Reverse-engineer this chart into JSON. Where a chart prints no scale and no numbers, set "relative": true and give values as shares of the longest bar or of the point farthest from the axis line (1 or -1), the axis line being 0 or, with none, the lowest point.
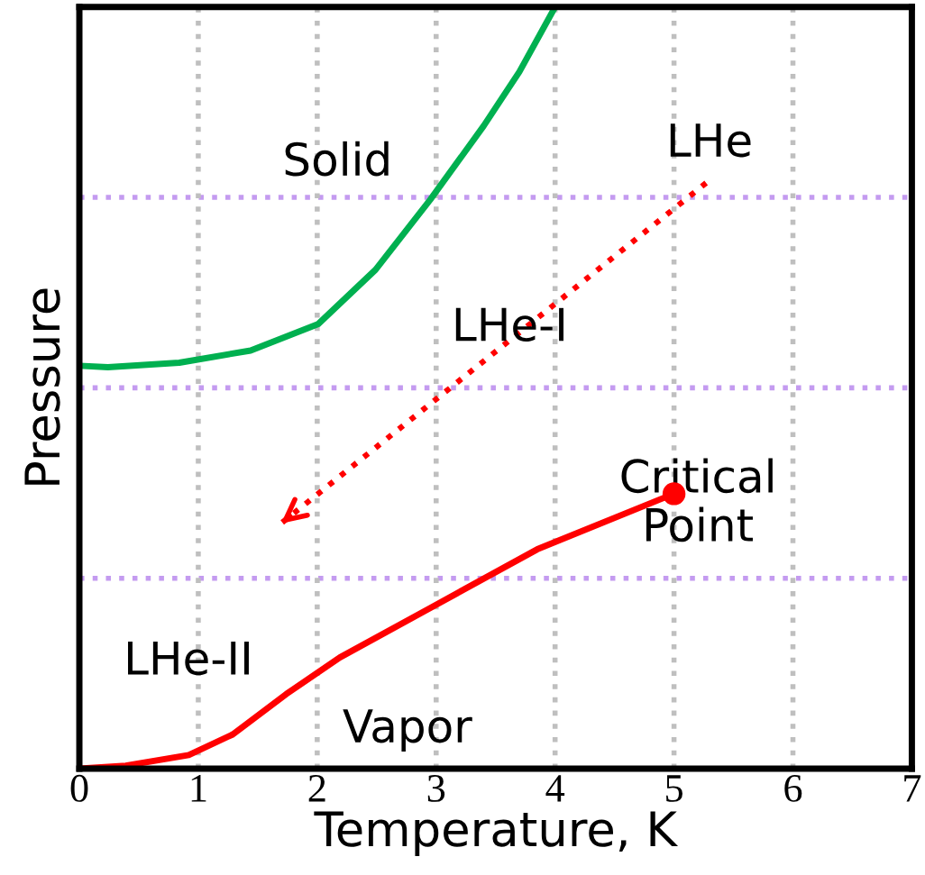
{
  "chart_data": {
    "type": "line",
    "relative": true,
    "xlabel": "Temperature, K",
    "ylabel": "Pressure",
    "xlim": [
      0,
      7
    ],
    "xticks": [
      0,
      1,
      2,
      3,
      4,
      5,
      6,
      7
    ],
    "grid": "x",
    "tick_labels": "x",
    "line_style": "solid",
    "marker": "none",
    "series": [
      {
        "color": "#00b050",
        "x": [
          0,
          0.24,
          0.84,
          1.44,
          2.01,
          2.49,
          2.95,
          3.4,
          3.7,
          4.0
        ],
        "values": [
          0.529,
          0.527,
          0.533,
          0.549,
          0.584,
          0.655,
          0.747,
          0.844,
          0.915,
          1.0
        ]
      },
      {
        "color": "#ff0000",
        "x": [
          0,
          0.39,
          0.92,
          1.29,
          1.74,
          2.19,
          2.95,
          3.85,
          5.0
        ],
        "values": [
          0,
          0.004,
          0.018,
          0.045,
          0.098,
          0.146,
          0.211,
          0.288,
          0.361
        ]
      },
      {
        "type": "scatter",
        "marker": "circle",
        "color": "#ff0000",
        "x": [
          5.0
        ],
        "values": [
          0.361
        ]
      },
      {
        "color": "#ff0000",
        "line_style": "dotted",
        "x": [
          5.27,
          1.68
        ],
        "values": [
          0.769,
          0.32
        ]
      }
    ],
    "ref_lines": [
      {
        "axis": "y",
        "value": 0.25,
        "color": "#c49bf0",
        "line_style": "dotted"
      },
      {
        "axis": "y",
        "value": 0.5,
        "color": "#c49bf0",
        "line_style": "dotted"
      },
      {
        "axis": "y",
        "value": 0.75,
        "color": "#c49bf0",
        "line_style": "dotted"
      }
    ],
    "annotations": [
      "Solid",
      "LHe",
      "LHe-I",
      "Critical\nPoint",
      "LHe-II",
      "Vapor"
    ]
  }
}
